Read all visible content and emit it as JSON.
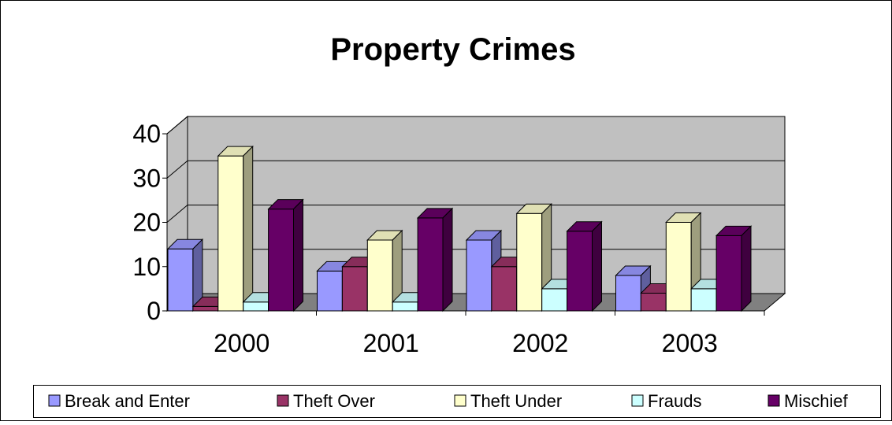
{
  "chart_data": {
    "type": "bar",
    "title": "Property Crimes",
    "categories": [
      "2000",
      "2001",
      "2002",
      "2003"
    ],
    "series": [
      {
        "name": "Break and Enter",
        "values": [
          14,
          9,
          16,
          8
        ],
        "color": "#9999FF"
      },
      {
        "name": "Theft Over",
        "values": [
          1,
          10,
          10,
          4
        ],
        "color": "#993366"
      },
      {
        "name": "Theft Under",
        "values": [
          35,
          16,
          22,
          20
        ],
        "color": "#FFFFCC"
      },
      {
        "name": "Frauds",
        "values": [
          2,
          2,
          5,
          5
        ],
        "color": "#CCFFFF"
      },
      {
        "name": "Mischief",
        "values": [
          23,
          21,
          18,
          17
        ],
        "color": "#660066"
      }
    ],
    "yticks": [
      "0",
      "10",
      "20",
      "30",
      "40"
    ],
    "ylim": [
      0,
      40
    ],
    "xlabel": "",
    "ylabel": "",
    "grid": true,
    "legend": "bottom",
    "three_d": true,
    "wall_color": "#C0C0C0",
    "floor_color": "#808080"
  }
}
